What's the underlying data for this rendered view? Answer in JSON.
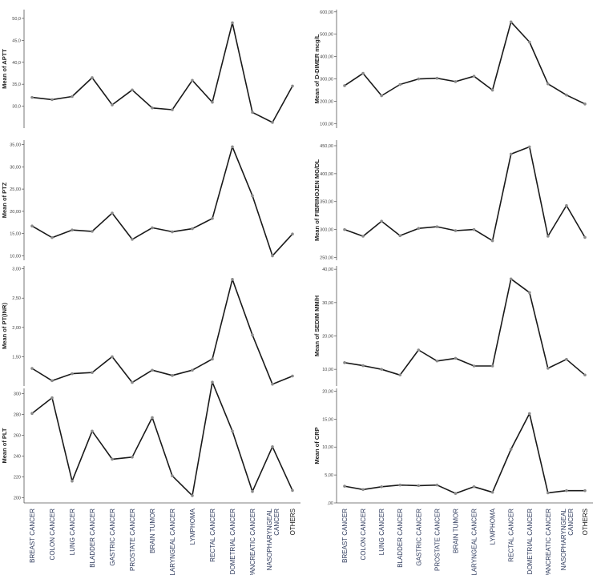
{
  "colors": {
    "line": "#1a1a1a",
    "marker": "#8a8a8a",
    "axis": "#555555",
    "category_text": "#2e3a5c",
    "background": "#ffffff"
  },
  "chart_data": [
    {
      "type": "line",
      "ylabel": "Mean of APTT",
      "categories": [
        "BREAST CANCER",
        "COLON CANCER",
        "LUNG CANCER",
        "BLADDER CANCER",
        "GASTRIC CANCER",
        "PROSTATE CANCER",
        "BRAIN TUMOR",
        "LARYNGEAL CANCER",
        "LYMPHOMA",
        "RECTAL CANCER",
        "ENDOMETRIAL CANCER",
        "PANCREATIC CANCER",
        "NASOPHARYNGEAL CANCER",
        "OTHERS"
      ],
      "values": [
        32.0,
        31.5,
        32.2,
        36.5,
        30.3,
        33.7,
        29.6,
        29.2,
        35.9,
        30.9,
        49.0,
        28.6,
        26.3,
        34.6
      ],
      "ylim": [
        25.0,
        52.0
      ],
      "yticks": [
        30.0,
        35.0,
        40.0,
        45.0,
        50.0
      ],
      "yticklabels": [
        "30,0",
        "35,0",
        "40,0",
        "45,0",
        "50,0"
      ]
    },
    {
      "type": "line",
      "ylabel": "Mean of D-DIMER mcg/L",
      "categories": [
        "BREAST CANCER",
        "COLON CANCER",
        "LUNG CANCER",
        "BLADDER CANCER",
        "GASTRIC CANCER",
        "PROSTATE CANCER",
        "BRAIN TUMOR",
        "LARYNGEAL CANCER",
        "LYMPHOMA",
        "RECTAL CANCER",
        "ENDOMETRIAL CANCER",
        "PANCREATIC CANCER",
        "NASOPHARYNGEAL CANCER",
        "OTHERS"
      ],
      "values": [
        270,
        325,
        225,
        275,
        300,
        303,
        288,
        312,
        250,
        555,
        465,
        278,
        228,
        188
      ],
      "ylim": [
        80,
        610
      ],
      "yticks": [
        100,
        200,
        300,
        400,
        500,
        600
      ],
      "yticklabels": [
        "100,00",
        "200,00",
        "300,00",
        "400,00",
        "500,00",
        "600,00"
      ]
    },
    {
      "type": "line",
      "ylabel": "Mean of PTZ",
      "categories": [
        "BREAST CANCER",
        "COLON CANCER",
        "LUNG CANCER",
        "BLADDER CANCER",
        "GASTRIC CANCER",
        "PROSTATE CANCER",
        "BRAIN TUMOR",
        "LARYNGEAL CANCER",
        "LYMPHOMA",
        "RECTAL CANCER",
        "ENDOMETRIAL CANCER",
        "PANCREATIC CANCER",
        "NASOPHARYNGEAL CANCER",
        "OTHERS"
      ],
      "values": [
        16.7,
        14.1,
        15.8,
        15.5,
        19.6,
        13.7,
        16.3,
        15.4,
        16.1,
        18.4,
        34.5,
        23.5,
        10.0,
        14.9
      ],
      "ylim": [
        9.0,
        36.0
      ],
      "yticks": [
        10,
        15,
        20,
        25,
        30,
        35
      ],
      "yticklabels": [
        "10,00",
        "15,00",
        "20,00",
        "25,00",
        "30,00",
        "35,00"
      ]
    },
    {
      "type": "line",
      "ylabel": "Mean of FIBRINOJEN MG/DL",
      "categories": [
        "BREAST CANCER",
        "COLON CANCER",
        "LUNG CANCER",
        "BLADDER CANCER",
        "GASTRIC CANCER",
        "PROSTATE CANCER",
        "BRAIN TUMOR",
        "LARYNGEAL CANCER",
        "LYMPHOMA",
        "RECTAL CANCER",
        "ENDOMETRIAL CANCER",
        "PANCREATIC CANCER",
        "NASOPHARYNGEAL CANCER",
        "OTHERS"
      ],
      "values": [
        300,
        288,
        315,
        289,
        302,
        305,
        298,
        300,
        280,
        435,
        448,
        288,
        343,
        286
      ],
      "ylim": [
        245,
        460
      ],
      "yticks": [
        250,
        300,
        350,
        400,
        450
      ],
      "yticklabels": [
        "250,00",
        "300,00",
        "350,00",
        "400,00",
        "450,00"
      ]
    },
    {
      "type": "line",
      "ylabel": "Mean of PT(INR)",
      "categories": [
        "BREAST CANCER",
        "COLON CANCER",
        "LUNG CANCER",
        "BLADDER CANCER",
        "GASTRIC CANCER",
        "PROSTATE CANCER",
        "BRAIN TUMOR",
        "LARYNGEAL CANCER",
        "LYMPHOMA",
        "RECTAL CANCER",
        "ENDOMETRIAL CANCER",
        "PANCREATIC CANCER",
        "NASOPHARYNGEAL CANCER",
        "OTHERS"
      ],
      "values": [
        1.3,
        1.09,
        1.21,
        1.23,
        1.5,
        1.06,
        1.27,
        1.18,
        1.27,
        1.46,
        2.82,
        1.87,
        1.03,
        1.17
      ],
      "ylim": [
        1.0,
        3.05
      ],
      "yticks": [
        1.5,
        2.0,
        2.5,
        3.0
      ],
      "yticklabels": [
        "1,50",
        "2,00",
        "2,50",
        "3,00"
      ]
    },
    {
      "type": "line",
      "ylabel": "Mean of SEDIM MM/H",
      "categories": [
        "BREAST CANCER",
        "COLON CANCER",
        "LUNG CANCER",
        "BLADDER CANCER",
        "GASTRIC CANCER",
        "PROSTATE CANCER",
        "BRAIN TUMOR",
        "LARYNGEAL CANCER",
        "LYMPHOMA",
        "RECTAL CANCER",
        "ENDOMETRIAL CANCER",
        "PANCREATIC CANCER",
        "NASOPHARYNGEAL CANCER",
        "OTHERS"
      ],
      "values": [
        12.0,
        11.1,
        10.0,
        8.3,
        15.8,
        12.5,
        13.3,
        11.0,
        11.0,
        37.1,
        33.0,
        10.3,
        13.0,
        8.3
      ],
      "ylim": [
        5.0,
        41.0
      ],
      "yticks": [
        10,
        20,
        30,
        40
      ],
      "yticklabels": [
        "10,00",
        "20,00",
        "30,00",
        "40,00"
      ]
    },
    {
      "type": "line",
      "ylabel": "Mean of PLT",
      "categories": [
        "BREAST CANCER",
        "COLON CANCER",
        "LUNG CANCER",
        "BLADDER CANCER",
        "GASTRIC CANCER",
        "PROSTATE CANCER",
        "BRAIN TUMOR",
        "LARYNGEAL CANCER",
        "LYMPHOMA",
        "RECTAL CANCER",
        "ENDOMETRIAL CANCER",
        "PANCREATIC CANCER",
        "NASOPHARYNGEAL CANCER",
        "OTHERS"
      ],
      "values": [
        281,
        296,
        216,
        264,
        237,
        239,
        277,
        221,
        202,
        311,
        264,
        206,
        249,
        207
      ],
      "ylim": [
        195,
        305
      ],
      "yticks": [
        200,
        220,
        240,
        260,
        280,
        300
      ],
      "yticklabels": [
        "200",
        "220",
        "240",
        "260",
        "280",
        "300"
      ]
    },
    {
      "type": "line",
      "ylabel": "Mean of CRP",
      "categories": [
        "BREAST CANCER",
        "COLON CANCER",
        "LUNG CANCER",
        "BLADDER CANCER",
        "GASTRIC CANCER",
        "PROSTATE CANCER",
        "BRAIN TUMOR",
        "LARYNGEAL CANCER",
        "LYMPHOMA",
        "RECTAL CANCER",
        "ENDOMETRIAL CANCER",
        "PANCREATIC CANCER",
        "NASOPHARYNGEAL CANCER",
        "OTHERS"
      ],
      "values": [
        3.0,
        2.4,
        2.9,
        3.2,
        3.1,
        3.2,
        1.7,
        2.9,
        1.9,
        9.6,
        16.0,
        1.8,
        2.2,
        2.2
      ],
      "ylim": [
        0,
        20.5
      ],
      "yticks": [
        0,
        5,
        10,
        15,
        20
      ],
      "yticklabels": [
        ",00",
        "5,00",
        "10,00",
        "15,00",
        "20,00"
      ]
    }
  ]
}
